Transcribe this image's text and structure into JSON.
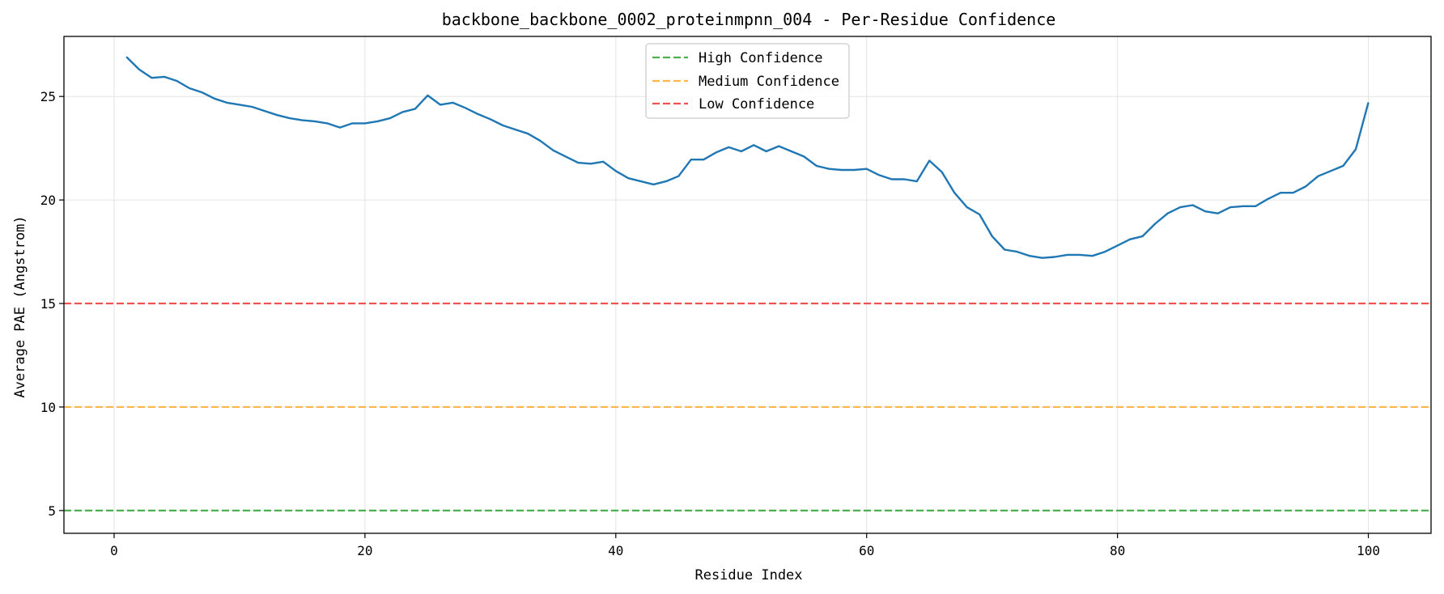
{
  "chart_data": {
    "type": "line",
    "title": "backbone_backbone_0002_proteinmpnn_004 - Per-Residue Confidence",
    "xlabel": "Residue Index",
    "ylabel": "Average PAE (Angstrom)",
    "xlim": [
      -4,
      105
    ],
    "ylim": [
      3.9,
      27.9
    ],
    "xticks": [
      0,
      20,
      40,
      60,
      80,
      100
    ],
    "yticks": [
      5,
      10,
      15,
      20,
      25
    ],
    "grid": true,
    "legend_position": "top-center",
    "series": [
      {
        "color": "#1f77b4",
        "x": [
          1,
          2,
          3,
          4,
          5,
          6,
          7,
          8,
          9,
          10,
          11,
          12,
          13,
          14,
          15,
          16,
          17,
          18,
          19,
          20,
          21,
          22,
          23,
          24,
          25,
          26,
          27,
          28,
          29,
          30,
          31,
          32,
          33,
          34,
          35,
          36,
          37,
          38,
          39,
          40,
          41,
          42,
          43,
          44,
          45,
          46,
          47,
          48,
          49,
          50,
          51,
          52,
          53,
          54,
          55,
          56,
          57,
          58,
          59,
          60,
          61,
          62,
          63,
          64,
          65,
          66,
          67,
          68,
          69,
          70,
          71,
          72,
          73,
          74,
          75,
          76,
          77,
          78,
          79,
          80,
          81,
          82,
          83,
          84,
          85,
          86,
          87,
          88,
          89,
          90,
          91,
          92,
          93,
          94,
          95,
          96,
          97,
          98,
          99,
          100
        ],
        "y": [
          26.9,
          26.3,
          25.9,
          25.95,
          25.75,
          25.4,
          25.2,
          24.9,
          24.7,
          24.6,
          24.5,
          24.3,
          24.1,
          23.95,
          23.85,
          23.8,
          23.7,
          23.5,
          23.7,
          23.7,
          23.8,
          23.95,
          24.25,
          24.4,
          25.05,
          24.6,
          24.7,
          24.45,
          24.15,
          23.9,
          23.6,
          23.4,
          23.2,
          22.85,
          22.4,
          22.1,
          21.8,
          21.75,
          21.85,
          21.4,
          21.05,
          20.9,
          20.75,
          20.9,
          21.15,
          21.95,
          21.95,
          22.3,
          22.55,
          22.35,
          22.65,
          22.35,
          22.6,
          22.35,
          22.1,
          21.65,
          21.5,
          21.45,
          21.45,
          21.5,
          21.2,
          21.0,
          21.0,
          20.9,
          21.9,
          21.35,
          20.35,
          19.65,
          19.3,
          18.25,
          17.6,
          17.5,
          17.3,
          17.2,
          17.25,
          17.35,
          17.35,
          17.3,
          17.5,
          17.8,
          18.1,
          18.25,
          18.85,
          19.35,
          19.65,
          19.75,
          19.45,
          19.35,
          19.65,
          19.7,
          19.7,
          20.05,
          20.35,
          20.35,
          20.65,
          21.15,
          21.4,
          21.65,
          22.45,
          24.7
        ]
      }
    ],
    "reference_lines": [
      {
        "name": "High Confidence",
        "y": 5,
        "color": "#4caf50"
      },
      {
        "name": "Medium Confidence",
        "y": 10,
        "color": "#ffb74d"
      },
      {
        "name": "Low Confidence",
        "y": 15,
        "color": "#ef5350"
      }
    ]
  }
}
